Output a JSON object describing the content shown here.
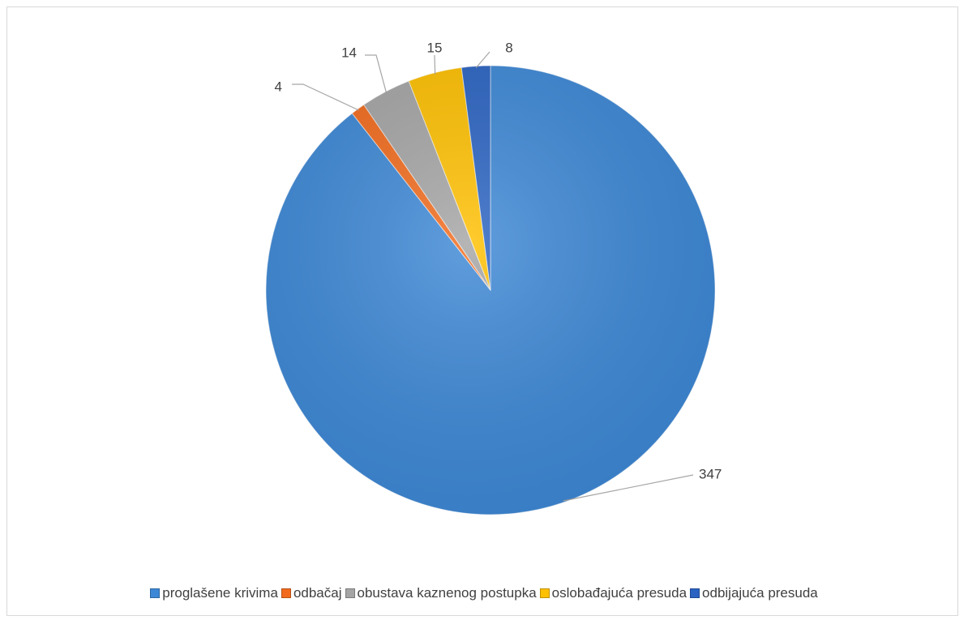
{
  "chart_data": {
    "type": "pie",
    "title": "",
    "categories": [
      "proglašene krivima",
      "odbačaj",
      "obustava kaznenog postupka",
      "oslobađajuća presuda",
      "odbijajuća presuda"
    ],
    "values": [
      347,
      4,
      14,
      15,
      8
    ],
    "data_labels": [
      "347",
      "4",
      "14",
      "15",
      "8"
    ],
    "colors": [
      "#3d88d6",
      "#f26b1d",
      "#a5a5a5",
      "#ffc000",
      "#2a63c2"
    ],
    "start_angle_deg": 0,
    "direction": "clockwise",
    "legend_position": "bottom",
    "show_data_labels": true
  }
}
